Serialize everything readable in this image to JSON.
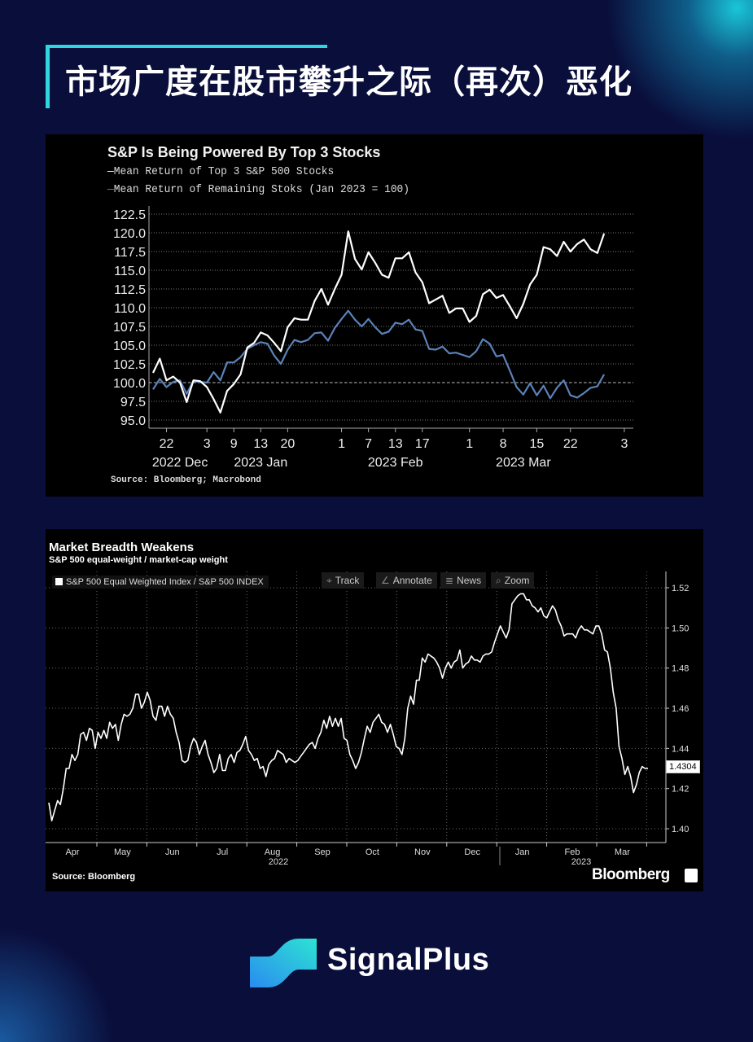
{
  "header": {
    "title": "市场广度在股市攀升之际（再次）恶化",
    "accent": "#2fd6e0"
  },
  "brand": {
    "name": "SignalPlus"
  },
  "chart_data": [
    {
      "type": "line",
      "title": "S&P Is Being Powered By Top 3 Stocks",
      "source": "Source: Bloomberg; Macrobond",
      "ylim": [
        95.0,
        122.5
      ],
      "yticks": [
        "95.0",
        "97.5",
        "100.0",
        "102.5",
        "105.0",
        "107.5",
        "110.0",
        "112.5",
        "115.0",
        "117.5",
        "120.0",
        "122.5"
      ],
      "reference_line": 100,
      "grid": true,
      "dates": [
        "2022-12-20",
        "2022-12-21",
        "2022-12-22",
        "2022-12-23",
        "2022-12-27",
        "2022-12-28",
        "2022-12-29",
        "2022-12-30",
        "2023-01-03",
        "2023-01-04",
        "2023-01-05",
        "2023-01-06",
        "2023-01-09",
        "2023-01-10",
        "2023-01-11",
        "2023-01-12",
        "2023-01-13",
        "2023-01-17",
        "2023-01-18",
        "2023-01-19",
        "2023-01-20",
        "2023-01-23",
        "2023-01-24",
        "2023-01-25",
        "2023-01-26",
        "2023-01-27",
        "2023-01-30",
        "2023-01-31",
        "2023-02-01",
        "2023-02-02",
        "2023-02-03",
        "2023-02-06",
        "2023-02-07",
        "2023-02-08",
        "2023-02-09",
        "2023-02-10",
        "2023-02-13",
        "2023-02-14",
        "2023-02-15",
        "2023-02-16",
        "2023-02-17",
        "2023-02-21",
        "2023-02-22",
        "2023-02-23",
        "2023-02-24",
        "2023-02-27",
        "2023-02-28",
        "2023-03-01",
        "2023-03-02",
        "2023-03-03",
        "2023-03-06",
        "2023-03-07",
        "2023-03-08",
        "2023-03-09",
        "2023-03-10",
        "2023-03-13",
        "2023-03-14",
        "2023-03-15",
        "2023-03-16",
        "2023-03-17",
        "2023-03-20",
        "2023-03-21",
        "2023-03-22",
        "2023-03-23",
        "2023-03-24",
        "2023-03-27",
        "2023-03-28",
        "2023-03-29"
      ],
      "xticks": [
        {
          "label": "22",
          "date": "2022-12-22"
        },
        {
          "label": "3",
          "date": "2023-01-03"
        },
        {
          "label": "9",
          "date": "2023-01-09"
        },
        {
          "label": "13",
          "date": "2023-01-13"
        },
        {
          "label": "20",
          "date": "2023-01-20"
        },
        {
          "label": "1",
          "date": "2023-02-01"
        },
        {
          "label": "7",
          "date": "2023-02-07"
        },
        {
          "label": "13",
          "date": "2023-02-13"
        },
        {
          "label": "17",
          "date": "2023-02-17"
        },
        {
          "label": "1",
          "date": "2023-03-01"
        },
        {
          "label": "8",
          "date": "2023-03-08"
        },
        {
          "label": "15",
          "date": "2023-03-15"
        },
        {
          "label": "22",
          "date": "2023-03-22"
        },
        {
          "label": "3",
          "date": "2023-04-03"
        }
      ],
      "xgroups": [
        {
          "label": "2022 Dec",
          "date": "2022-12-27"
        },
        {
          "label": "2023 Jan",
          "date": "2023-01-13"
        },
        {
          "label": "2023 Feb",
          "date": "2023-02-13"
        },
        {
          "label": "2023 Mar",
          "date": "2023-03-13"
        }
      ],
      "series": [
        {
          "name": "Mean Return of Top 3 S&P 500 Stocks",
          "color": "#ffffff",
          "values": [
            101.3,
            103.2,
            100.3,
            100.8,
            100.0,
            97.4,
            100.3,
            100.2,
            99.4,
            97.8,
            96.0,
            98.9,
            99.8,
            101.1,
            104.7,
            105.3,
            106.7,
            106.3,
            105.3,
            104.2,
            107.4,
            108.6,
            108.4,
            108.4,
            110.9,
            112.5,
            110.4,
            112.5,
            114.4,
            120.2,
            116.5,
            115.1,
            117.4,
            116.0,
            114.4,
            114.0,
            116.6,
            116.6,
            117.4,
            114.7,
            113.4,
            110.6,
            111.1,
            111.6,
            109.3,
            109.9,
            109.9,
            108.1,
            108.9,
            111.8,
            112.4,
            111.3,
            111.7,
            110.2,
            108.6,
            110.5,
            113.1,
            114.4,
            118.1,
            117.8,
            116.9,
            118.8,
            117.5,
            118.5,
            119.1,
            117.8,
            117.3,
            119.9
          ]
        },
        {
          "name": "Mean Return of Remaining Stoks (Jan 2023 = 100)",
          "color": "#5b82b8",
          "values": [
            99.1,
            100.5,
            99.4,
            100.1,
            100.3,
            98.5,
            100.2,
            100.1,
            100.0,
            101.4,
            100.3,
            102.7,
            102.7,
            103.4,
            104.5,
            105.0,
            105.4,
            105.2,
            103.6,
            102.5,
            104.4,
            105.7,
            105.4,
            105.7,
            106.6,
            106.7,
            105.6,
            107.3,
            108.5,
            109.6,
            108.4,
            107.5,
            108.5,
            107.4,
            106.5,
            106.8,
            108.0,
            107.8,
            108.4,
            107.1,
            106.9,
            104.5,
            104.4,
            104.8,
            103.9,
            104.0,
            103.7,
            103.4,
            104.2,
            105.8,
            105.2,
            103.5,
            103.7,
            101.6,
            99.4,
            98.4,
            99.9,
            98.3,
            99.6,
            97.9,
            99.3,
            100.3,
            98.3,
            98.0,
            98.6,
            99.3,
            99.5,
            101.1
          ]
        }
      ]
    },
    {
      "type": "line",
      "title": "Market Breadth Weakens",
      "subtitle": "S&P 500 equal-weight / market-cap weight",
      "legend": "S&P 500 Equal Weighted Index / S&P 500 INDEX",
      "toolbar": [
        "Track",
        "Annotate",
        "News",
        "Zoom"
      ],
      "toolbar_icons": [
        "crosshair-icon",
        "pencil-icon",
        "news-icon",
        "magnifier-icon"
      ],
      "source": "Source: Bloomberg",
      "logo": "Bloomberg",
      "ylim": [
        1.4,
        1.52
      ],
      "yticks": [
        "1.40",
        "1.42",
        "1.44",
        "1.46",
        "1.48",
        "1.50",
        "1.52"
      ],
      "y_axis_side": "right",
      "last_value": "1.4304",
      "grid": true,
      "x_range": [
        "2022-04",
        "2023-03"
      ],
      "xticks": [
        "Apr",
        "May",
        "Jun",
        "Jul",
        "Aug",
        "Sep",
        "Oct",
        "Nov",
        "Dec",
        "Jan",
        "Feb",
        "Mar"
      ],
      "year_labels": [
        "2022",
        "2023"
      ],
      "series": [
        {
          "name": "S&P 500 Equal Weighted Index / S&P 500 INDEX",
          "color": "#ffffff",
          "values": [
            1.413,
            1.404,
            1.409,
            1.414,
            1.412,
            1.42,
            1.43,
            1.43,
            1.437,
            1.434,
            1.437,
            1.447,
            1.448,
            1.444,
            1.45,
            1.449,
            1.44,
            1.448,
            1.445,
            1.449,
            1.445,
            1.453,
            1.45,
            1.452,
            1.444,
            1.452,
            1.457,
            1.456,
            1.457,
            1.46,
            1.467,
            1.467,
            1.46,
            1.463,
            1.468,
            1.464,
            1.456,
            1.454,
            1.461,
            1.461,
            1.456,
            1.461,
            1.457,
            1.455,
            1.448,
            1.443,
            1.434,
            1.433,
            1.434,
            1.441,
            1.445,
            1.443,
            1.437,
            1.441,
            1.444,
            1.437,
            1.433,
            1.428,
            1.43,
            1.437,
            1.429,
            1.429,
            1.435,
            1.437,
            1.433,
            1.438,
            1.439,
            1.442,
            1.446,
            1.439,
            1.437,
            1.434,
            1.435,
            1.43,
            1.431,
            1.426,
            1.432,
            1.434,
            1.435,
            1.439,
            1.438,
            1.437,
            1.433,
            1.435,
            1.434,
            1.433,
            1.434,
            1.436,
            1.438,
            1.44,
            1.442,
            1.443,
            1.44,
            1.445,
            1.448,
            1.454,
            1.45,
            1.456,
            1.451,
            1.455,
            1.451,
            1.455,
            1.445,
            1.444,
            1.437,
            1.434,
            1.43,
            1.433,
            1.438,
            1.445,
            1.451,
            1.448,
            1.453,
            1.455,
            1.457,
            1.453,
            1.452,
            1.448,
            1.452,
            1.447,
            1.441,
            1.44,
            1.437,
            1.445,
            1.46,
            1.466,
            1.462,
            1.474,
            1.474,
            1.485,
            1.483,
            1.487,
            1.486,
            1.485,
            1.483,
            1.48,
            1.475,
            1.48,
            1.483,
            1.48,
            1.483,
            1.484,
            1.489,
            1.48,
            1.482,
            1.483,
            1.486,
            1.484,
            1.484,
            1.483,
            1.486,
            1.487,
            1.487,
            1.488,
            1.493,
            1.497,
            1.501,
            1.498,
            1.495,
            1.499,
            1.512,
            1.514,
            1.516,
            1.517,
            1.517,
            1.514,
            1.514,
            1.511,
            1.51,
            1.508,
            1.51,
            1.506,
            1.505,
            1.508,
            1.511,
            1.509,
            1.504,
            1.501,
            1.496,
            1.497,
            1.497,
            1.497,
            1.495,
            1.499,
            1.501,
            1.499,
            1.499,
            1.498,
            1.497,
            1.501,
            1.501,
            1.497,
            1.489,
            1.488,
            1.48,
            1.468,
            1.46,
            1.441,
            1.435,
            1.427,
            1.431,
            1.426,
            1.418,
            1.422,
            1.428,
            1.431,
            1.43,
            1.43
          ]
        }
      ]
    }
  ]
}
